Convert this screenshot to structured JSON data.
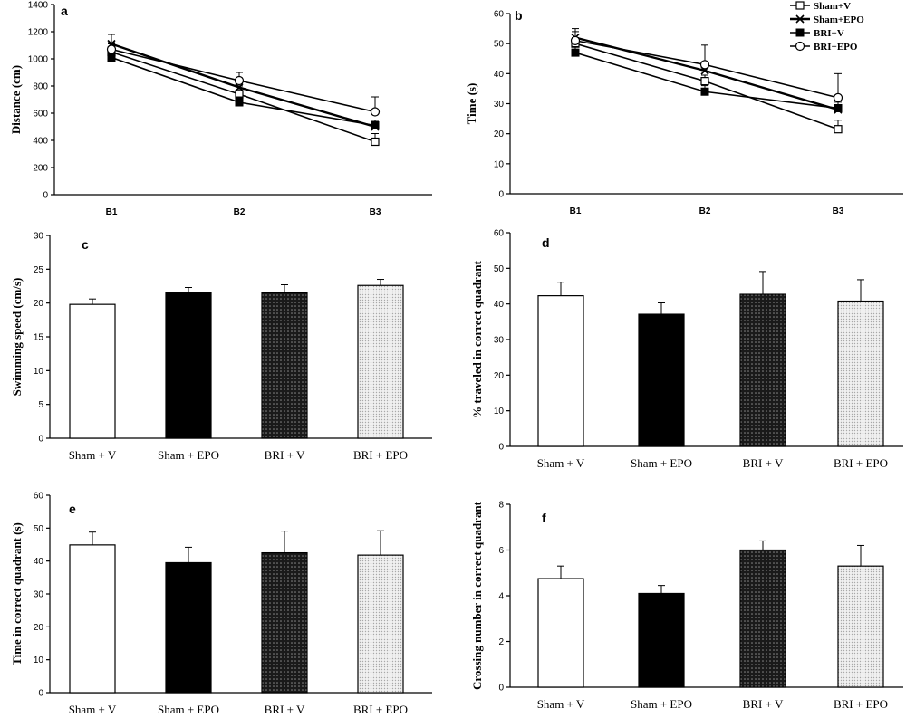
{
  "chart_data": [
    {
      "panel": "a",
      "type": "line",
      "ylabel": "Distance (cm)",
      "categories": [
        "B1",
        "B2",
        "B3"
      ],
      "ylim": [
        0,
        1400
      ],
      "yticks": [
        0,
        200,
        400,
        600,
        800,
        1000,
        1200,
        1400
      ],
      "series": [
        {
          "name": "Sham+V",
          "marker": "open-square",
          "values": [
            1050,
            740,
            390
          ],
          "errors": [
            60,
            60,
            60
          ]
        },
        {
          "name": "Sham+EPO",
          "marker": "cross",
          "values": [
            1110,
            790,
            500
          ],
          "errors": [
            70,
            70,
            40
          ]
        },
        {
          "name": "BRI+V",
          "marker": "filled-square",
          "values": [
            1010,
            680,
            510
          ],
          "errors": [
            40,
            40,
            40
          ]
        },
        {
          "name": "BRI+EPO",
          "marker": "open-circle",
          "values": [
            1070,
            840,
            610
          ],
          "errors": [
            50,
            60,
            110
          ]
        }
      ]
    },
    {
      "panel": "b",
      "type": "line",
      "ylabel": "Time (s)",
      "categories": [
        "B1",
        "B2",
        "B3"
      ],
      "ylim": [
        0,
        60
      ],
      "yticks": [
        0,
        10,
        20,
        30,
        40,
        50,
        60
      ],
      "series": [
        {
          "name": "Sham+V",
          "marker": "open-square",
          "values": [
            50,
            37.5,
            21.5
          ],
          "errors": [
            2,
            2,
            3
          ]
        },
        {
          "name": "Sham+EPO",
          "marker": "cross",
          "values": [
            52,
            41,
            28
          ],
          "errors": [
            3,
            3,
            3
          ]
        },
        {
          "name": "BRI+V",
          "marker": "filled-square",
          "values": [
            47,
            34,
            28.5
          ],
          "errors": [
            2,
            2,
            2
          ]
        },
        {
          "name": "BRI+EPO",
          "marker": "open-circle",
          "values": [
            51,
            43,
            32
          ],
          "errors": [
            3,
            6.5,
            8
          ]
        }
      ]
    },
    {
      "panel": "c",
      "type": "bar",
      "ylabel": "Swimming speed (cm/s)",
      "categories": [
        "Sham + V",
        "Sham + EPO",
        "BRI + V",
        "BRI + EPO"
      ],
      "values": [
        19.8,
        21.6,
        21.5,
        22.6
      ],
      "errors": [
        0.8,
        0.7,
        1.2,
        0.9
      ],
      "ylim": [
        0,
        30
      ],
      "yticks": [
        0,
        5,
        10,
        15,
        20,
        25,
        30
      ]
    },
    {
      "panel": "d",
      "type": "bar",
      "ylabel": "% traveled in correct quadrant",
      "categories": [
        "Sham + V",
        "Sham + EPO",
        "BRI + V",
        "BRI + EPO"
      ],
      "values": [
        42.3,
        37.1,
        42.7,
        40.8
      ],
      "errors": [
        3.8,
        3.2,
        6.4,
        6.0
      ],
      "ylim": [
        0,
        60
      ],
      "yticks": [
        0,
        10,
        20,
        30,
        40,
        50,
        60
      ]
    },
    {
      "panel": "e",
      "type": "bar",
      "ylabel": "Time in correct quadrant (s)",
      "categories": [
        "Sham + V",
        "Sham + EPO",
        "BRI + V",
        "BRI + EPO"
      ],
      "values": [
        44.9,
        39.5,
        42.5,
        41.8
      ],
      "errors": [
        3.9,
        4.7,
        6.6,
        7.4
      ],
      "ylim": [
        0,
        60
      ],
      "yticks": [
        0,
        10,
        20,
        30,
        40,
        50,
        60
      ]
    },
    {
      "panel": "f",
      "type": "bar",
      "ylabel": "Crossing number in correct quadrant",
      "categories": [
        "Sham + V",
        "Sham + EPO",
        "BRI + V",
        "BRI + EPO"
      ],
      "values": [
        4.75,
        4.1,
        6.0,
        5.3
      ],
      "errors": [
        0.55,
        0.35,
        0.4,
        0.9
      ],
      "ylim": [
        0,
        8
      ],
      "yticks": [
        0,
        2,
        4,
        6,
        8
      ]
    }
  ],
  "bar_fills": [
    "white",
    "black",
    "dark-dotted",
    "light-dotted"
  ]
}
